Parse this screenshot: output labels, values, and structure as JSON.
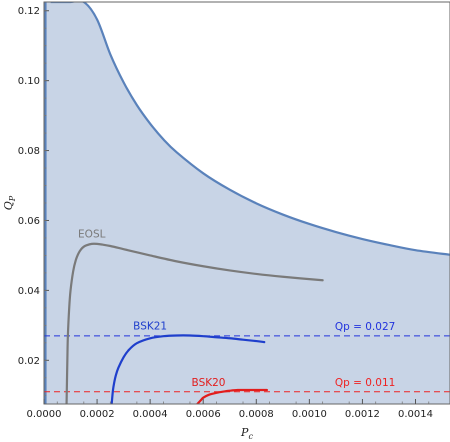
{
  "chart_data": {
    "type": "line",
    "xlabel": "P",
    "xlabel_sub": "c",
    "ylabel": "Q",
    "ylabel_sub": "P",
    "xlim": [
      0,
      0.00153
    ],
    "ylim": [
      0.0075,
      0.1225
    ],
    "xticks": [
      0.0,
      0.0002,
      0.0004,
      0.0006,
      0.0008,
      0.001,
      0.0012,
      0.0014
    ],
    "xtick_labels": [
      "0.0000",
      "0.0002",
      "0.0004",
      "0.0006",
      "0.0008",
      "0.0010",
      "0.0012",
      "0.0014"
    ],
    "yticks": [
      0.02,
      0.04,
      0.06,
      0.08,
      0.1,
      0.12
    ],
    "ytick_labels": [
      "0.02",
      "0.04",
      "0.06",
      "0.08",
      "0.10",
      "0.12"
    ],
    "grid": false,
    "region": {
      "fill": "#c8d4e6",
      "edge": "#5a82bb",
      "left_boundary_x": 5.5e-06,
      "upper_boundary": {
        "x": [
          2.5e-05,
          5e-05,
          0.0001,
          0.00015,
          0.0002,
          0.00025,
          0.0003,
          0.00035,
          0.0004,
          0.00045,
          0.0005,
          0.0006,
          0.0007,
          0.0008,
          0.0009,
          0.001,
          0.0011,
          0.0012,
          0.0013,
          0.0014,
          0.00153
        ],
        "y": [
          0.1225,
          0.1225,
          0.1225,
          0.1225,
          0.1175,
          0.1075,
          0.0995,
          0.093,
          0.0877,
          0.0832,
          0.0795,
          0.0735,
          0.0688,
          0.0649,
          0.0617,
          0.059,
          0.0567,
          0.0547,
          0.053,
          0.0515,
          0.0502
        ]
      }
    },
    "series": [
      {
        "name": "EOSL",
        "color": "#7a7a7a",
        "x": [
          8.5e-05,
          8.8e-05,
          9e-05,
          9.5e-05,
          0.0001,
          0.00011,
          0.00012,
          0.00013,
          0.00014,
          0.00015,
          0.00016,
          0.00018,
          0.0002,
          0.00022,
          0.00025,
          0.0003,
          0.00035,
          0.0004,
          0.0005,
          0.0006,
          0.0007,
          0.0008,
          0.0009,
          0.00105
        ],
        "y": [
          0.0075,
          0.02,
          0.027,
          0.035,
          0.04,
          0.0455,
          0.0487,
          0.0506,
          0.0518,
          0.0525,
          0.0529,
          0.0533,
          0.0533,
          0.0531,
          0.0527,
          0.0518,
          0.0509,
          0.05,
          0.0483,
          0.0469,
          0.0457,
          0.0447,
          0.0439,
          0.0429
        ]
      },
      {
        "name": "BSK21",
        "color": "#1f3fcc",
        "x": [
          0.000255,
          0.00026,
          0.000265,
          0.00027,
          0.00028,
          0.0003,
          0.00032,
          0.00035,
          0.0004,
          0.00045,
          0.0005,
          0.00055,
          0.0006,
          0.00065,
          0.0007,
          0.00075,
          0.0008,
          0.00083
        ],
        "y": [
          0.0075,
          0.0115,
          0.0138,
          0.0155,
          0.0178,
          0.0209,
          0.023,
          0.0249,
          0.0263,
          0.0269,
          0.0271,
          0.0271,
          0.0269,
          0.0266,
          0.0263,
          0.0259,
          0.0255,
          0.0252
        ]
      },
      {
        "name": "BSK20",
        "color": "#e21d1d",
        "x": [
          0.000578,
          0.00059,
          0.0006,
          0.00062,
          0.00065,
          0.00068,
          0.0007,
          0.00073,
          0.00076,
          0.0008,
          0.00084
        ],
        "y": [
          0.0075,
          0.0085,
          0.0093,
          0.0101,
          0.0107,
          0.0111,
          0.0113,
          0.0115,
          0.0115,
          0.0115,
          0.0115
        ]
      }
    ],
    "reference_lines": [
      {
        "label": "Qp = 0.027",
        "y": 0.027,
        "color": "#2233dd"
      },
      {
        "label": "Qp = 0.011",
        "y": 0.011,
        "color": "#ee2222"
      }
    ]
  }
}
